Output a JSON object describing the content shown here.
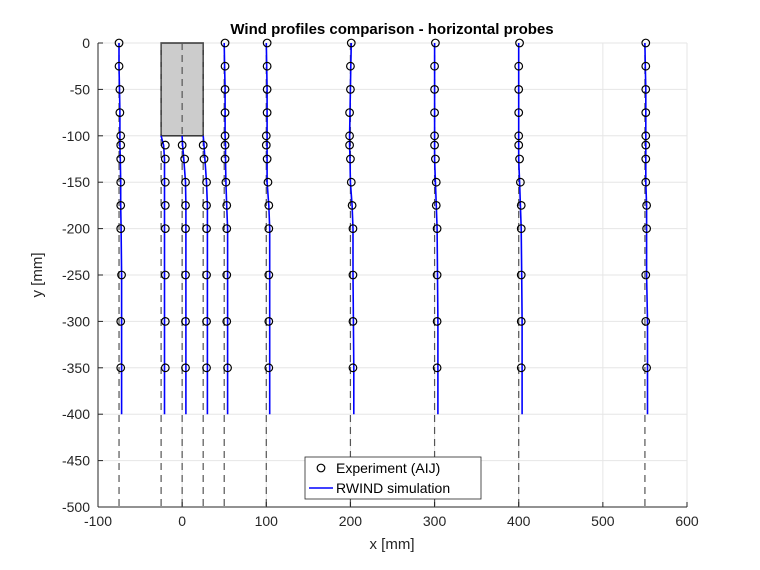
{
  "chart_data": {
    "type": "line",
    "title": "Wind profiles comparison - horizontal probes",
    "xlabel": "x [mm]",
    "ylabel": "y [mm]",
    "xlim": [
      -100,
      600
    ],
    "ylim": [
      -500,
      0
    ],
    "xticks": [
      -100,
      0,
      100,
      200,
      300,
      400,
      500,
      600
    ],
    "yticks": [
      0,
      -50,
      -100,
      -150,
      -200,
      -250,
      -300,
      -350,
      -400,
      -450,
      -500
    ],
    "grid": true,
    "legend_placement": "bottom-center",
    "legend": [
      "Experiment (AIJ)",
      "RWIND simulation"
    ],
    "colors": {
      "experiment": "#000000",
      "simulation": "#0000ff",
      "building": "#cccccc",
      "probe_line": "#555555"
    },
    "building": {
      "x": [
        -25,
        25
      ],
      "y": [
        -100,
        0
      ]
    },
    "probes": [
      {
        "x": -75,
        "exp_y": [
          0,
          -25,
          -50,
          -75,
          -100,
          -110,
          -125,
          -150,
          -175,
          -200,
          -250,
          -300,
          -350
        ],
        "exp_x": [
          -75,
          -75,
          -74,
          -74,
          -73,
          -73,
          -73,
          -73,
          -73,
          -73,
          -72,
          -73,
          -73
        ],
        "sim_y": [
          0,
          -25,
          -50,
          -75,
          -100,
          -110,
          -125,
          -150,
          -175,
          -200,
          -250,
          -300,
          -350,
          -400
        ],
        "sim_x": [
          -75,
          -75,
          -74.5,
          -74,
          -74,
          -74,
          -73.5,
          -73,
          -73,
          -72.5,
          -72,
          -72,
          -72,
          -72
        ]
      },
      {
        "x": -25,
        "exp_y": [
          -110,
          -125,
          -150,
          -175,
          -200,
          -250,
          -300,
          -350
        ],
        "exp_x": [
          -20,
          -20,
          -20,
          -20,
          -20,
          -20,
          -20,
          -20
        ],
        "sim_y": [
          -100,
          -110,
          -125,
          -150,
          -175,
          -200,
          -250,
          -300,
          -350,
          -400
        ],
        "sim_x": [
          -25,
          -22,
          -21,
          -21,
          -21,
          -21,
          -21,
          -21,
          -21,
          -21
        ]
      },
      {
        "x": 0,
        "exp_y": [
          -110,
          -125,
          -150,
          -175,
          -200,
          -250,
          -300,
          -350
        ],
        "exp_x": [
          0,
          3,
          4,
          4,
          4,
          4,
          4,
          4
        ],
        "sim_y": [
          -100,
          -110,
          -125,
          -150,
          -175,
          -200,
          -250,
          -300,
          -350,
          -400
        ],
        "sim_x": [
          0,
          0.5,
          2,
          4,
          4.5,
          4.5,
          4.5,
          4.5,
          4.5,
          4.5
        ]
      },
      {
        "x": 25,
        "exp_y": [
          -110,
          -125,
          -150,
          -175,
          -200,
          -250,
          -300,
          -350
        ],
        "exp_x": [
          25,
          26,
          29,
          29,
          29,
          29,
          29,
          29
        ],
        "sim_y": [
          -100,
          -110,
          -125,
          -150,
          -175,
          -200,
          -250,
          -300,
          -350,
          -400
        ],
        "sim_x": [
          25,
          26,
          27,
          29,
          30,
          30,
          30,
          30,
          30,
          30
        ]
      },
      {
        "x": 50,
        "exp_y": [
          0,
          -25,
          -50,
          -75,
          -100,
          -110,
          -125,
          -150,
          -175,
          -200,
          -250,
          -300,
          -350
        ],
        "exp_x": [
          51,
          51,
          51,
          51,
          51,
          51,
          51,
          52,
          53,
          53,
          53,
          53,
          54
        ],
        "sim_y": [
          0,
          -25,
          -50,
          -75,
          -100,
          -110,
          -125,
          -150,
          -175,
          -200,
          -250,
          -300,
          -350,
          -400
        ],
        "sim_x": [
          50,
          50.5,
          51,
          51,
          51,
          51.5,
          51.5,
          52,
          53,
          54,
          54,
          54,
          54,
          54
        ]
      },
      {
        "x": 100,
        "exp_y": [
          0,
          -25,
          -50,
          -75,
          -100,
          -110,
          -125,
          -150,
          -175,
          -200,
          -250,
          -300,
          -350
        ],
        "exp_x": [
          101,
          101,
          101,
          101,
          100,
          100,
          101,
          102,
          103,
          103,
          103,
          103,
          103
        ],
        "sim_y": [
          0,
          -25,
          -50,
          -75,
          -100,
          -110,
          -125,
          -150,
          -175,
          -200,
          -250,
          -300,
          -350,
          -400
        ],
        "sim_x": [
          100,
          100.5,
          101,
          101,
          101,
          101,
          101,
          101,
          103,
          104,
          104,
          104,
          104,
          104
        ]
      },
      {
        "x": 200,
        "exp_y": [
          0,
          -25,
          -50,
          -75,
          -100,
          -110,
          -125,
          -150,
          -175,
          -200,
          -250,
          -300,
          -350
        ],
        "exp_x": [
          201,
          200,
          200,
          199,
          199,
          199,
          200,
          201,
          202,
          203,
          203,
          203,
          203
        ],
        "sim_y": [
          0,
          -25,
          -50,
          -75,
          -100,
          -110,
          -125,
          -150,
          -175,
          -200,
          -250,
          -300,
          -350,
          -400
        ],
        "sim_x": [
          201,
          200.5,
          200,
          199.5,
          199,
          199,
          199.5,
          200,
          202,
          203,
          203,
          203.5,
          204,
          204
        ]
      },
      {
        "x": 300,
        "exp_y": [
          0,
          -25,
          -50,
          -75,
          -100,
          -110,
          -125,
          -150,
          -175,
          -200,
          -250,
          -300,
          -350
        ],
        "exp_x": [
          301,
          300,
          300,
          300,
          300,
          300,
          301,
          302,
          302,
          303,
          303,
          303,
          303
        ],
        "sim_y": [
          0,
          -25,
          -50,
          -75,
          -100,
          -110,
          -125,
          -150,
          -175,
          -200,
          -250,
          -300,
          -350,
          -400
        ],
        "sim_x": [
          300,
          300,
          300,
          300,
          300,
          300,
          300,
          301,
          302,
          303,
          303.5,
          304,
          304,
          304
        ]
      },
      {
        "x": 400,
        "exp_y": [
          0,
          -25,
          -50,
          -75,
          -100,
          -110,
          -125,
          -150,
          -175,
          -200,
          -250,
          -300,
          -350
        ],
        "exp_x": [
          401,
          400,
          400,
          400,
          400,
          400,
          401,
          402,
          403,
          403,
          403,
          403,
          403
        ],
        "sim_y": [
          0,
          -25,
          -50,
          -75,
          -100,
          -110,
          -125,
          -150,
          -175,
          -200,
          -250,
          -300,
          -350,
          -400
        ],
        "sim_x": [
          400,
          400,
          400,
          400,
          400,
          400,
          400,
          401,
          402,
          403,
          403.5,
          404,
          404,
          404
        ]
      },
      {
        "x": 550,
        "exp_y": [
          0,
          -25,
          -50,
          -75,
          -100,
          -110,
          -125,
          -150,
          -175,
          -200,
          -250,
          -300,
          -350
        ],
        "exp_x": [
          551,
          551,
          551,
          551,
          551,
          551,
          551,
          551,
          552,
          552,
          551,
          551,
          552
        ],
        "sim_y": [
          0,
          -25,
          -50,
          -75,
          -100,
          -110,
          -125,
          -150,
          -175,
          -200,
          -250,
          -300,
          -350,
          -400
        ],
        "sim_x": [
          550,
          550.5,
          551,
          551,
          551,
          551,
          551,
          551,
          552,
          552,
          552,
          553,
          553,
          553
        ]
      }
    ]
  }
}
